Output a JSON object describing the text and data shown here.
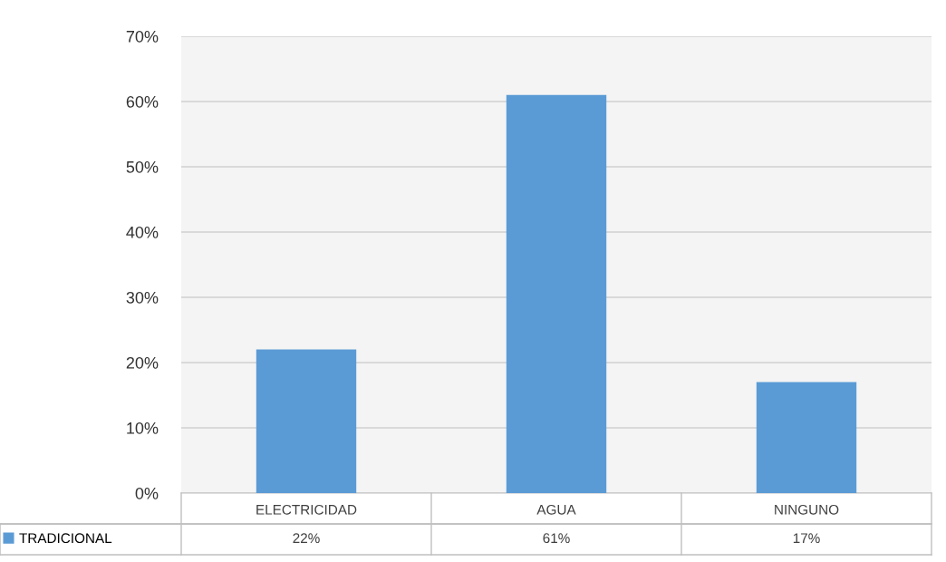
{
  "chart_data": {
    "type": "bar",
    "categories": [
      "ELECTRICIDAD",
      "AGUA",
      "NINGUNO"
    ],
    "series": [
      {
        "name": "TRADICIONAL",
        "color": "#5b9bd5",
        "values": [
          22,
          61,
          17
        ]
      }
    ],
    "value_labels": [
      "22%",
      "61%",
      "17%"
    ],
    "ylim": [
      0,
      70
    ],
    "yticks": [
      {
        "value": 0,
        "label": "0%"
      },
      {
        "value": 10,
        "label": "10%"
      },
      {
        "value": 20,
        "label": "20%"
      },
      {
        "value": 30,
        "label": "30%"
      },
      {
        "value": 40,
        "label": "40%"
      },
      {
        "value": 50,
        "label": "50%"
      },
      {
        "value": 60,
        "label": "60%"
      },
      {
        "value": 70,
        "label": "70%"
      }
    ],
    "grid": "y",
    "legend": "bottom left"
  }
}
